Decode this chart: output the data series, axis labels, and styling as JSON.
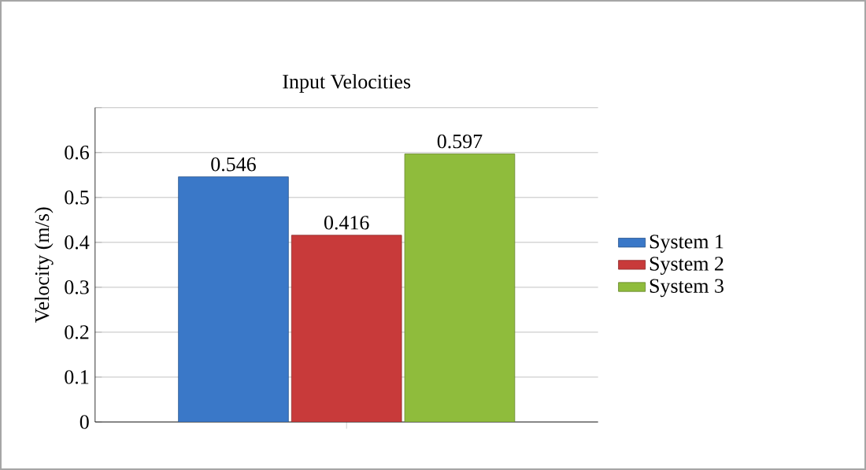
{
  "chart_data": {
    "type": "bar",
    "title": "Input Velocities",
    "ylabel": "Velocity (m/s)",
    "categories": [
      null
    ],
    "series": [
      {
        "name": "System 1",
        "color": "#3a78c8",
        "values": [
          0.546
        ]
      },
      {
        "name": "System 2",
        "color": "#c83a3a",
        "values": [
          0.416
        ]
      },
      {
        "name": "System 3",
        "color": "#8fbc3c",
        "values": [
          0.597
        ]
      }
    ],
    "ylim": [
      0,
      0.7
    ],
    "yticks": [
      0,
      0.1,
      0.2,
      0.3,
      0.4,
      0.5,
      0.6,
      {
        "value": 0.7,
        "label": null
      }
    ],
    "grid": "y",
    "legend": "right",
    "data_labels": true
  }
}
